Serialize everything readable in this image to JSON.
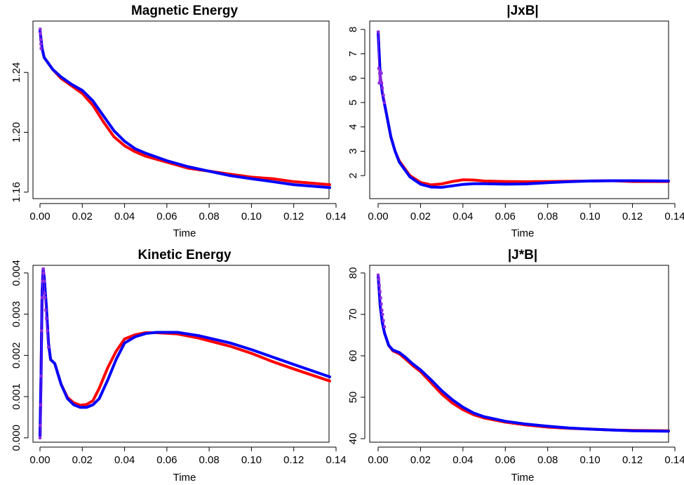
{
  "colors": {
    "red_series": "#ff0000",
    "blue_series": "#0000ff",
    "marker": "#8a2be2",
    "axis": "#000000"
  },
  "chart_data": [
    {
      "id": "magnetic",
      "type": "line",
      "title": "Magnetic Energy",
      "xlabel": "Time",
      "ylabel": "",
      "xlim": [
        0,
        0.14
      ],
      "ylim": [
        1.158,
        1.272
      ],
      "xticks": [
        "0.00",
        "0.02",
        "0.04",
        "0.06",
        "0.08",
        "0.10",
        "0.12",
        "0.14"
      ],
      "yticks": [
        "1.16",
        "1.20",
        "1.24"
      ],
      "ytick_values": [
        1.16,
        1.2,
        1.24
      ],
      "series": [
        {
          "name": "red",
          "x": [
            0,
            0.001,
            0.002,
            0.004,
            0.006,
            0.01,
            0.015,
            0.02,
            0.025,
            0.03,
            0.035,
            0.04,
            0.045,
            0.05,
            0.06,
            0.07,
            0.08,
            0.09,
            0.1,
            0.11,
            0.12,
            0.137
          ],
          "y": [
            1.268,
            1.256,
            1.25,
            1.246,
            1.242,
            1.236,
            1.231,
            1.226,
            1.218,
            1.207,
            1.197,
            1.191,
            1.187,
            1.184,
            1.18,
            1.176,
            1.174,
            1.172,
            1.17,
            1.169,
            1.167,
            1.165
          ]
        },
        {
          "name": "blue",
          "x": [
            0,
            0.001,
            0.002,
            0.004,
            0.006,
            0.01,
            0.015,
            0.02,
            0.025,
            0.03,
            0.035,
            0.04,
            0.045,
            0.05,
            0.06,
            0.07,
            0.08,
            0.09,
            0.1,
            0.11,
            0.12,
            0.137
          ],
          "y": [
            1.268,
            1.256,
            1.25,
            1.246,
            1.242,
            1.237,
            1.232,
            1.228,
            1.221,
            1.211,
            1.201,
            1.194,
            1.189,
            1.186,
            1.181,
            1.177,
            1.174,
            1.171,
            1.169,
            1.167,
            1.165,
            1.163
          ]
        }
      ],
      "markers": {
        "x": [
          0.0001,
          0.0002,
          0.0003,
          0.0004,
          0.0005
        ],
        "y": [
          1.269,
          1.266,
          1.262,
          1.259,
          1.256
        ]
      }
    },
    {
      "id": "jxb",
      "type": "line",
      "title": "|JxB|",
      "xlabel": "Time",
      "ylabel": "",
      "xlim": [
        0,
        0.14
      ],
      "ylim": [
        1.2,
        8.2
      ],
      "xticks": [
        "0.00",
        "0.02",
        "0.04",
        "0.06",
        "0.08",
        "0.10",
        "0.12",
        "0.14"
      ],
      "yticks": [
        "2",
        "3",
        "4",
        "5",
        "6",
        "7",
        "8"
      ],
      "ytick_values": [
        2,
        3,
        4,
        5,
        6,
        7,
        8
      ],
      "series": [
        {
          "name": "red",
          "x": [
            0,
            0.001,
            0.002,
            0.004,
            0.006,
            0.008,
            0.01,
            0.015,
            0.02,
            0.025,
            0.03,
            0.035,
            0.04,
            0.045,
            0.05,
            0.06,
            0.07,
            0.08,
            0.09,
            0.1,
            0.11,
            0.12,
            0.137
          ],
          "y": [
            7.9,
            6.1,
            5.4,
            4.5,
            3.6,
            3.0,
            2.6,
            2.0,
            1.72,
            1.62,
            1.66,
            1.76,
            1.83,
            1.82,
            1.78,
            1.76,
            1.75,
            1.76,
            1.77,
            1.78,
            1.79,
            1.76,
            1.76
          ]
        },
        {
          "name": "blue",
          "x": [
            0,
            0.001,
            0.002,
            0.004,
            0.006,
            0.008,
            0.01,
            0.015,
            0.02,
            0.025,
            0.03,
            0.035,
            0.04,
            0.045,
            0.05,
            0.06,
            0.07,
            0.08,
            0.09,
            0.1,
            0.11,
            0.12,
            0.137
          ],
          "y": [
            7.9,
            6.1,
            5.4,
            4.5,
            3.6,
            3.0,
            2.55,
            1.95,
            1.65,
            1.53,
            1.52,
            1.58,
            1.64,
            1.67,
            1.67,
            1.65,
            1.66,
            1.71,
            1.75,
            1.78,
            1.79,
            1.79,
            1.78
          ]
        }
      ],
      "markers": {
        "x": [
          0.0001,
          0.0003,
          0.0005,
          0.0007,
          0.0009,
          0.0011,
          0.0013,
          0.0015,
          0.0017,
          0.002,
          0.0025,
          0.003
        ],
        "y": [
          7.9,
          6.4,
          5.8,
          6.2,
          5.9,
          6.3,
          5.9,
          6.2,
          5.8,
          5.6,
          5.3,
          5.0
        ]
      }
    },
    {
      "id": "kinetic",
      "type": "line",
      "title": "Kinetic Energy",
      "xlabel": "Time",
      "ylabel": "",
      "xlim": [
        0,
        0.14
      ],
      "ylim": [
        -2e-05,
        0.0041
      ],
      "xticks": [
        "0.00",
        "0.02",
        "0.04",
        "0.06",
        "0.08",
        "0.10",
        "0.12",
        "0.14"
      ],
      "yticks": [
        "0.000",
        "0.001",
        "0.002",
        "0.003",
        "0.004"
      ],
      "ytick_values": [
        0,
        0.001,
        0.002,
        0.003,
        0.004
      ],
      "series": [
        {
          "name": "red",
          "x": [
            0,
            0.0005,
            0.001,
            0.0015,
            0.002,
            0.003,
            0.004,
            0.005,
            0.007,
            0.01,
            0.013,
            0.016,
            0.019,
            0.022,
            0.025,
            0.028,
            0.032,
            0.036,
            0.04,
            0.045,
            0.05,
            0.055,
            0.065,
            0.075,
            0.09,
            0.1,
            0.11,
            0.12,
            0.137
          ],
          "y": [
            0,
            0.0015,
            0.0035,
            0.0041,
            0.0039,
            0.0032,
            0.0023,
            0.0019,
            0.0018,
            0.0013,
            0.00098,
            0.00085,
            0.00079,
            0.00081,
            0.0009,
            0.0012,
            0.0017,
            0.0021,
            0.0024,
            0.0025,
            0.00255,
            0.00255,
            0.00252,
            0.00242,
            0.00222,
            0.00205,
            0.00185,
            0.00167,
            0.00138
          ]
        },
        {
          "name": "blue",
          "x": [
            0,
            0.0005,
            0.001,
            0.0015,
            0.002,
            0.003,
            0.004,
            0.005,
            0.007,
            0.01,
            0.013,
            0.016,
            0.019,
            0.022,
            0.025,
            0.028,
            0.032,
            0.036,
            0.04,
            0.045,
            0.05,
            0.055,
            0.065,
            0.075,
            0.09,
            0.1,
            0.11,
            0.12,
            0.137
          ],
          "y": [
            0,
            0.0015,
            0.0035,
            0.0041,
            0.0039,
            0.0032,
            0.0023,
            0.0019,
            0.0018,
            0.0013,
            0.00095,
            0.0008,
            0.00074,
            0.00074,
            0.0008,
            0.00095,
            0.0014,
            0.0019,
            0.0023,
            0.00245,
            0.00253,
            0.00256,
            0.00256,
            0.00248,
            0.0023,
            0.00214,
            0.00196,
            0.00178,
            0.00148
          ]
        }
      ],
      "markers": {
        "x": [
          0,
          0.0002,
          0.0004,
          0.0006,
          0.0008,
          0.001,
          0.0012,
          0.0014,
          0.0016,
          0.0018,
          0.002,
          0.0022,
          0.0024,
          0.0027,
          0.003,
          0.0035,
          0.004
        ],
        "y": [
          0,
          0.0003,
          0.0008,
          0.0015,
          0.0026,
          0.0034,
          0.0038,
          0.004,
          0.0041,
          0.004,
          0.0038,
          0.0035,
          0.0034,
          0.0031,
          0.0029,
          0.0026,
          0.0022
        ]
      }
    },
    {
      "id": "jdotb",
      "type": "line",
      "title": "|J*B|",
      "xlabel": "Time",
      "ylabel": "",
      "xlim": [
        0,
        0.14
      ],
      "ylim": [
        40,
        81
      ],
      "xticks": [
        "0.00",
        "0.02",
        "0.04",
        "0.06",
        "0.08",
        "0.10",
        "0.12",
        "0.14"
      ],
      "yticks": [
        "40",
        "50",
        "60",
        "70",
        "80"
      ],
      "ytick_values": [
        40,
        50,
        60,
        70,
        80
      ],
      "series": [
        {
          "name": "red",
          "x": [
            0,
            0.001,
            0.002,
            0.003,
            0.005,
            0.007,
            0.01,
            0.013,
            0.016,
            0.02,
            0.025,
            0.03,
            0.035,
            0.04,
            0.045,
            0.05,
            0.06,
            0.07,
            0.08,
            0.09,
            0.1,
            0.11,
            0.12,
            0.137
          ],
          "y": [
            79.5,
            72,
            68,
            65.5,
            62.5,
            61.2,
            60.5,
            59.2,
            57.8,
            56.2,
            53.5,
            50.8,
            48.6,
            47.0,
            45.8,
            45.0,
            44.0,
            43.3,
            42.8,
            42.5,
            42.3,
            42.1,
            42.0,
            41.9
          ]
        },
        {
          "name": "blue",
          "x": [
            0,
            0.001,
            0.002,
            0.003,
            0.005,
            0.007,
            0.01,
            0.013,
            0.016,
            0.02,
            0.025,
            0.03,
            0.035,
            0.04,
            0.045,
            0.05,
            0.06,
            0.07,
            0.08,
            0.09,
            0.1,
            0.11,
            0.12,
            0.137
          ],
          "y": [
            79.5,
            72,
            68,
            65.5,
            62.5,
            61.4,
            60.8,
            59.6,
            58.2,
            56.6,
            54.2,
            51.6,
            49.4,
            47.6,
            46.2,
            45.3,
            44.2,
            43.5,
            43.0,
            42.6,
            42.3,
            42.1,
            41.9,
            41.8
          ]
        }
      ],
      "markers": {
        "x": [
          0,
          0.0003,
          0.0006,
          0.0009,
          0.0012,
          0.0015,
          0.0018,
          0.0021,
          0.0025,
          0.003
        ],
        "y": [
          79.5,
          78.5,
          77,
          75.5,
          74,
          72.5,
          71,
          70,
          68.5,
          67
        ]
      }
    }
  ]
}
